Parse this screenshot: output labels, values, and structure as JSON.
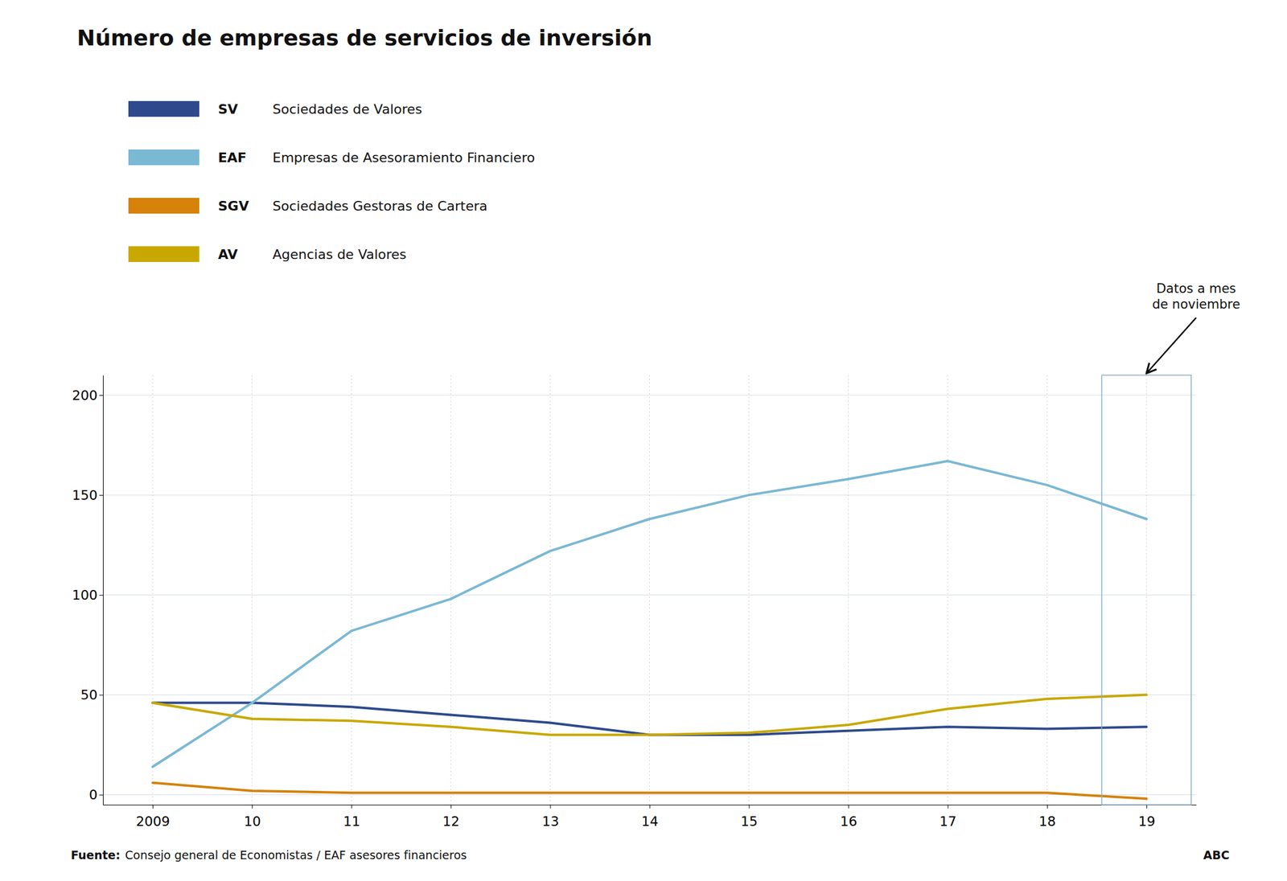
{
  "chart_data": {
    "type": "line",
    "title": "Número de empresas de servicios de inversión",
    "categories": [
      "2009",
      "10",
      "11",
      "12",
      "13",
      "14",
      "15",
      "16",
      "17",
      "18",
      "19"
    ],
    "series": [
      {
        "name": "SV",
        "label": "Sociedades de Valores",
        "color": "#2E4A8C",
        "values": [
          46,
          46,
          44,
          40,
          36,
          30,
          30,
          32,
          34,
          33,
          34
        ]
      },
      {
        "name": "EAF",
        "label": "Empresas de Asesoramiento Financiero",
        "color": "#7AB8D4",
        "values": [
          14,
          46,
          82,
          98,
          122,
          138,
          150,
          158,
          167,
          155,
          138
        ]
      },
      {
        "name": "SGV",
        "label": "Sociedades Gestoras de Cartera",
        "color": "#D4820A",
        "values": [
          6,
          2,
          1,
          1,
          1,
          1,
          1,
          1,
          1,
          1,
          -2
        ]
      },
      {
        "name": "AV",
        "label": "Agencias de Valores",
        "color": "#C8A800",
        "values": [
          46,
          38,
          37,
          34,
          30,
          30,
          31,
          35,
          43,
          48,
          50
        ]
      }
    ],
    "ylim": [
      -5,
      210
    ],
    "yticks": [
      0,
      50,
      100,
      150,
      200
    ],
    "grid": true,
    "annotations": [
      {
        "text": [
          "Datos a mes",
          "de noviembre"
        ],
        "category": "19"
      }
    ],
    "source": {
      "label": "Fuente:",
      "text": "Consejo general de Economistas / EAF asesores financieros"
    },
    "credit": "ABC"
  }
}
